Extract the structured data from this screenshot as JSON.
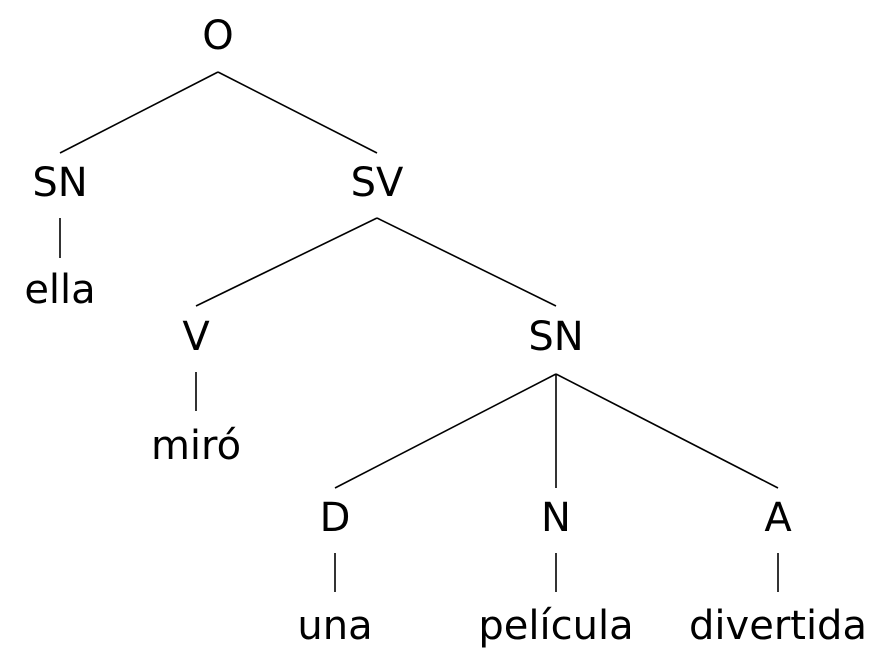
{
  "tree": {
    "root": "O",
    "subject_phrase": "SN",
    "subject_word": "ella",
    "verb_phrase": "SV",
    "verb": "V",
    "verb_word": "miró",
    "object_phrase": "SN",
    "determiner": "D",
    "determiner_word": "una",
    "noun": "N",
    "noun_word": "película",
    "adjective": "A",
    "adjective_word": "divertida"
  }
}
